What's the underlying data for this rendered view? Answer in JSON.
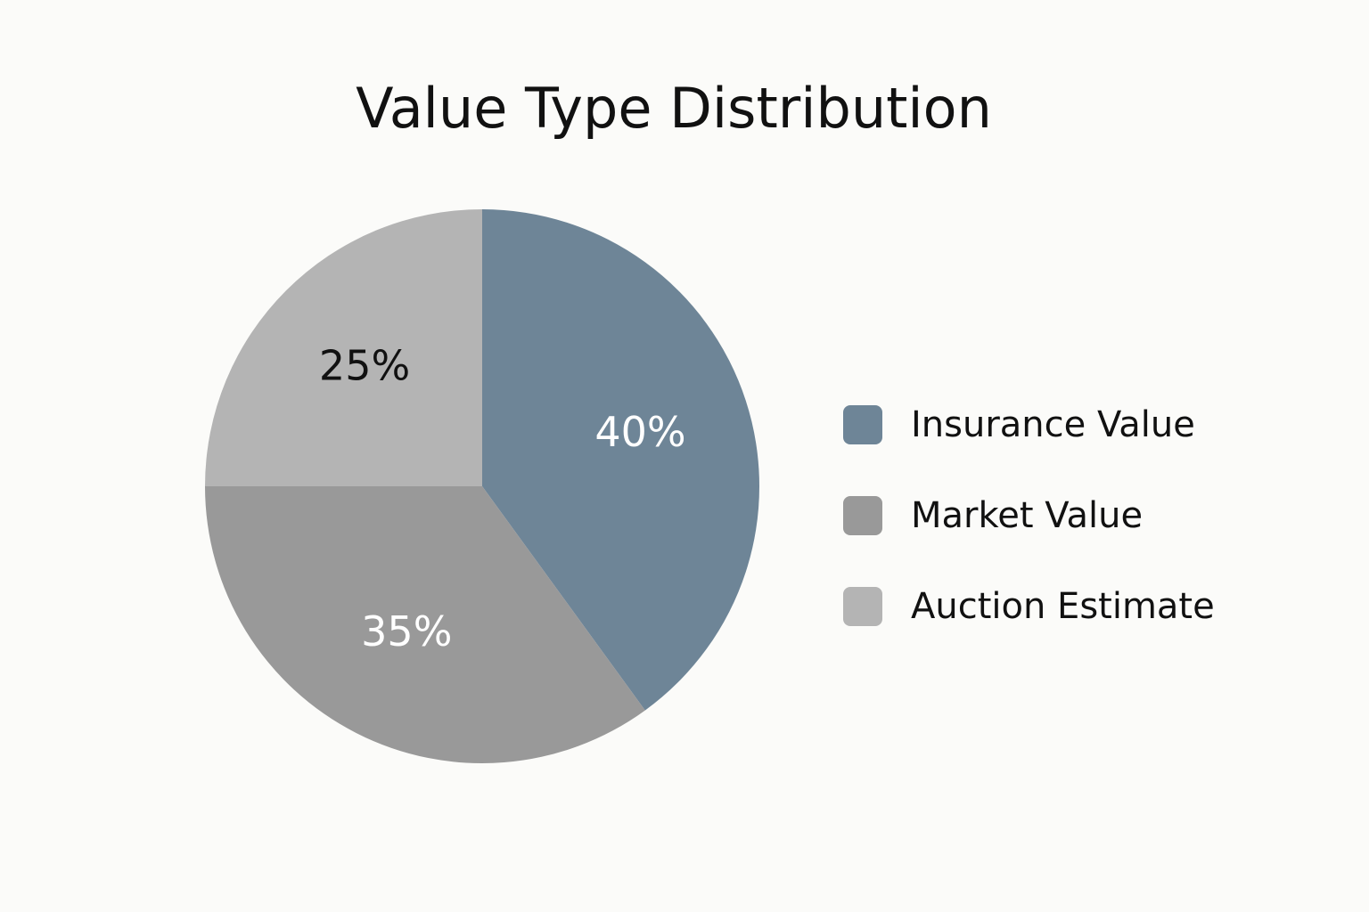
{
  "chart_data": {
    "type": "pie",
    "title": "Value Type Distribution",
    "categories": [
      "Insurance Value",
      "Market Value",
      "Auction Estimate"
    ],
    "values": [
      40,
      35,
      25
    ],
    "value_labels": [
      "40%",
      "35%",
      "25%"
    ],
    "colors": [
      "#6e8597",
      "#999999",
      "#b4b4b4"
    ],
    "legend": "right"
  }
}
